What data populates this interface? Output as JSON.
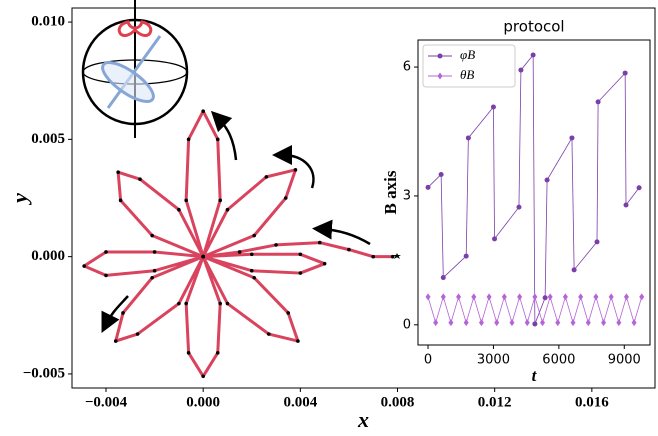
{
  "chart_data": [
    {
      "type": "line",
      "xlabel": "x",
      "ylabel": "y",
      "color": "#d9435e",
      "marker_color": "#000000",
      "xlim": [
        -0.0054,
        0.0186
      ],
      "ylim": [
        -0.0056,
        0.0106
      ],
      "xticks": [
        {
          "value": -0.004,
          "label": "−0.004"
        },
        {
          "value": 0.0,
          "label": "0.000"
        },
        {
          "value": 0.004,
          "label": "0.004"
        },
        {
          "value": 0.008,
          "label": "0.008"
        },
        {
          "value": 0.012,
          "label": "0.012"
        },
        {
          "value": 0.016,
          "label": "0.016"
        }
      ],
      "yticks": [
        {
          "value": -0.005,
          "label": "−0.005"
        },
        {
          "value": 0.0,
          "label": "0.000"
        },
        {
          "value": 0.005,
          "label": "0.005"
        },
        {
          "value": 0.01,
          "label": "0.010"
        }
      ],
      "x": [
        0.0078,
        0.007,
        0.006,
        0.0048,
        0.003,
        0.0015,
        0.0,
        0.002,
        0.004,
        0.005,
        0.004,
        0.002,
        0.0,
        0.0021,
        0.0035,
        0.0039,
        0.0027,
        0.001,
        0.0,
        0.0007,
        0.0006,
        0.0,
        -0.0006,
        -0.0007,
        0.0,
        -0.001,
        -0.0027,
        -0.0036,
        -0.0033,
        -0.0021,
        0.0,
        -0.002,
        -0.004,
        -0.0049,
        -0.004,
        -0.002,
        0.0,
        -0.0021,
        -0.0034,
        -0.0035,
        -0.0026,
        -0.001,
        0.0,
        -0.0007,
        -0.0006,
        0.0,
        0.0006,
        0.0007,
        0.0,
        0.001,
        0.0026,
        0.0038,
        0.0034,
        0.0021,
        0.0
      ],
      "values": [
        0.0,
        0.0,
        0.0003,
        0.0006,
        0.0005,
        0.0002,
        0.0,
        -0.0006,
        -0.0007,
        -0.0003,
        0.0001,
        0.0001,
        0.0,
        -0.0009,
        -0.0024,
        -0.0036,
        -0.0033,
        -0.002,
        0.0,
        -0.002,
        -0.0041,
        -0.0051,
        -0.0041,
        -0.002,
        0.0,
        -0.002,
        -0.0033,
        -0.0036,
        -0.0024,
        -0.0009,
        0.0,
        -0.0006,
        -0.0008,
        -0.0004,
        0.0002,
        0.0002,
        0.0,
        0.0009,
        0.0024,
        0.0036,
        0.0033,
        0.002,
        0.0,
        0.0024,
        0.005,
        0.0062,
        0.005,
        0.0024,
        0.0,
        0.002,
        0.0034,
        0.0037,
        0.0025,
        0.0009,
        0.0
      ]
    },
    {
      "type": "line",
      "title": "protocol",
      "xlabel": "t",
      "ylabel": "B axis",
      "xlim": [
        -460,
        10180
      ],
      "ylim": [
        -0.47,
        6.63
      ],
      "xticks": [
        0,
        3000,
        6000,
        9000
      ],
      "yticks": [
        0,
        3,
        6
      ],
      "series": [
        {
          "name": "φB",
          "color": "#7b3fa8",
          "marker": "circle",
          "x": [
            0,
            600,
            700,
            1750,
            1850,
            3000,
            3050,
            4170,
            4260,
            4820,
            4900,
            5370,
            5460,
            6600,
            6700,
            7750,
            7800,
            9040,
            9080,
            9680
          ],
          "values": [
            3.2,
            3.5,
            1.1,
            1.6,
            4.35,
            5.07,
            2.0,
            2.74,
            5.93,
            6.28,
            0.02,
            0.63,
            3.37,
            4.35,
            1.28,
            1.93,
            5.19,
            5.86,
            2.79,
            3.19
          ]
        },
        {
          "name": "θB",
          "color": "#b565d8",
          "marker": "diamond",
          "x": [
            0,
            350,
            700,
            1050,
            1400,
            1750,
            2100,
            2450,
            2800,
            3150,
            3500,
            3850,
            4200,
            4550,
            4900,
            5250,
            5600,
            5950,
            6300,
            6650,
            7000,
            7350,
            7700,
            8050,
            8400,
            8750,
            9100,
            9450,
            9800
          ],
          "values": [
            0.65,
            0.05,
            0.65,
            0.05,
            0.65,
            0.05,
            0.65,
            0.05,
            0.65,
            0.05,
            0.65,
            0.05,
            0.65,
            0.05,
            0.65,
            0.05,
            0.65,
            0.05,
            0.65,
            0.05,
            0.65,
            0.05,
            0.65,
            0.05,
            0.65,
            0.05,
            0.65,
            0.05,
            0.65
          ]
        }
      ]
    }
  ]
}
